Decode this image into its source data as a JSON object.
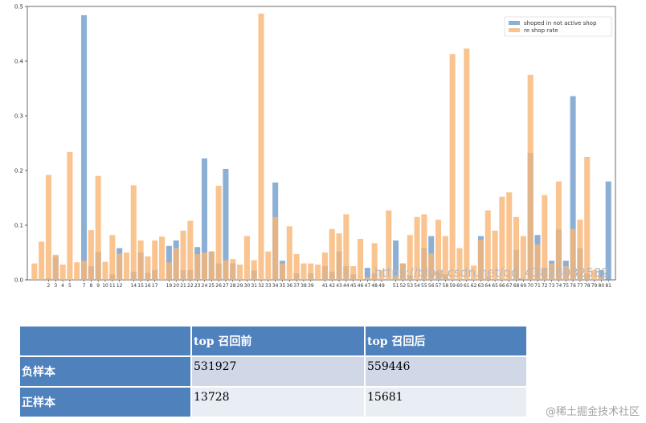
{
  "chart_data": {
    "type": "bar",
    "title": "",
    "xlabel": "",
    "ylabel": "",
    "ylim": [
      0,
      0.5
    ],
    "xlim": [
      -1,
      82
    ],
    "yticks": [
      "0.0",
      "0.1",
      "0.2",
      "0.3",
      "0.4",
      "0.5"
    ],
    "ytick_values": [
      0.0,
      0.1,
      0.2,
      0.3,
      0.4,
      0.5
    ],
    "grid": false,
    "legend_position": "top-right",
    "overlay": true,
    "x": [
      0,
      1,
      2,
      3,
      4,
      5,
      6,
      7,
      8,
      9,
      10,
      11,
      12,
      13,
      14,
      15,
      16,
      17,
      18,
      19,
      20,
      21,
      22,
      23,
      24,
      25,
      26,
      27,
      28,
      29,
      30,
      31,
      32,
      33,
      34,
      35,
      36,
      37,
      38,
      39,
      40,
      41,
      42,
      43,
      44,
      45,
      46,
      47,
      48,
      49,
      50,
      51,
      52,
      53,
      54,
      55,
      56,
      57,
      58,
      59,
      60,
      61,
      62,
      63,
      64,
      65,
      66,
      67,
      68,
      69,
      70,
      71,
      72,
      73,
      74,
      75,
      76,
      77,
      78,
      79,
      80,
      81
    ],
    "xtick_labels": [
      "",
      "",
      "2",
      "3",
      "4",
      "5",
      "",
      "7",
      "8",
      "9",
      "10",
      "11",
      "12",
      "",
      "14",
      "15",
      "16",
      "17",
      "",
      "19",
      "20",
      "21",
      "22",
      "23",
      "24",
      "25",
      "26",
      "27",
      "28",
      "29",
      "30",
      "31",
      "32",
      "33",
      "34",
      "35",
      "36",
      "37",
      "38",
      "39",
      "",
      "41",
      "42",
      "43",
      "44",
      "45",
      "46",
      "47",
      "48",
      "49",
      "",
      "51",
      "52",
      "53",
      "54",
      "55",
      "56",
      "57",
      "58",
      "59",
      "60",
      "61",
      "62",
      "63",
      "64",
      "65",
      "66",
      "67",
      "68",
      "69",
      "70",
      "71",
      "72",
      "73",
      "74",
      "75",
      "76",
      "77",
      "78",
      "79",
      "80",
      "81"
    ],
    "series": [
      {
        "name": "shoped in not active shop",
        "color": "#6f9ccb",
        "values": [
          0.0,
          0.0,
          0.003,
          0.043,
          0.0,
          0.0,
          0.0,
          0.484,
          0.025,
          0.051,
          0.0,
          0.01,
          0.058,
          0.0,
          0.015,
          0.05,
          0.013,
          0.018,
          0.0,
          0.062,
          0.072,
          0.018,
          0.018,
          0.06,
          0.222,
          0.052,
          0.03,
          0.203,
          0.03,
          0.0,
          0.0,
          0.017,
          0.0,
          0.0,
          0.178,
          0.035,
          0.0,
          0.012,
          0.0,
          0.012,
          0.0,
          0.025,
          0.015,
          0.052,
          0.025,
          0.01,
          0.0,
          0.022,
          0.012,
          0.0,
          0.0,
          0.072,
          0.03,
          0.008,
          0.0,
          0.058,
          0.08,
          0.015,
          0.01,
          0.0,
          0.0,
          0.0,
          0.0,
          0.08,
          0.006,
          0.0,
          0.0,
          0.0,
          0.055,
          0.0,
          0.232,
          0.082,
          0.022,
          0.035,
          0.092,
          0.035,
          0.336,
          0.058,
          0.012,
          0.0,
          0.018,
          0.18
        ]
      },
      {
        "name": "re shop rate",
        "color": "#f9b574",
        "values": [
          0.03,
          0.07,
          0.192,
          0.046,
          0.028,
          0.234,
          0.032,
          0.035,
          0.091,
          0.19,
          0.033,
          0.082,
          0.048,
          0.05,
          0.173,
          0.072,
          0.043,
          0.072,
          0.079,
          0.032,
          0.058,
          0.09,
          0.108,
          0.047,
          0.05,
          0.052,
          0.172,
          0.036,
          0.038,
          0.028,
          0.08,
          0.036,
          0.487,
          0.052,
          0.115,
          0.03,
          0.098,
          0.047,
          0.03,
          0.03,
          0.028,
          0.05,
          0.093,
          0.085,
          0.12,
          0.025,
          0.075,
          0.005,
          0.067,
          0.018,
          0.127,
          0.007,
          0.03,
          0.082,
          0.115,
          0.12,
          0.048,
          0.11,
          0.08,
          0.413,
          0.058,
          0.423,
          0.026,
          0.073,
          0.127,
          0.09,
          0.152,
          0.16,
          0.115,
          0.08,
          0.375,
          0.065,
          0.155,
          0.03,
          0.18,
          0.025,
          0.093,
          0.11,
          0.225,
          0.018,
          0.005,
          0.0
        ]
      }
    ]
  },
  "watermark": {
    "url_text": "https://blog.csdn.net/qq_43828032582"
  },
  "table": {
    "headers": [
      "",
      "top 召回前",
      "top 召回后"
    ],
    "rows": [
      {
        "label": "负样本",
        "values": [
          "531927",
          "559446"
        ]
      },
      {
        "label": "正样本",
        "values": [
          "13728",
          "15681"
        ]
      }
    ]
  },
  "site_watermark": "@稀土掘金技术社区"
}
